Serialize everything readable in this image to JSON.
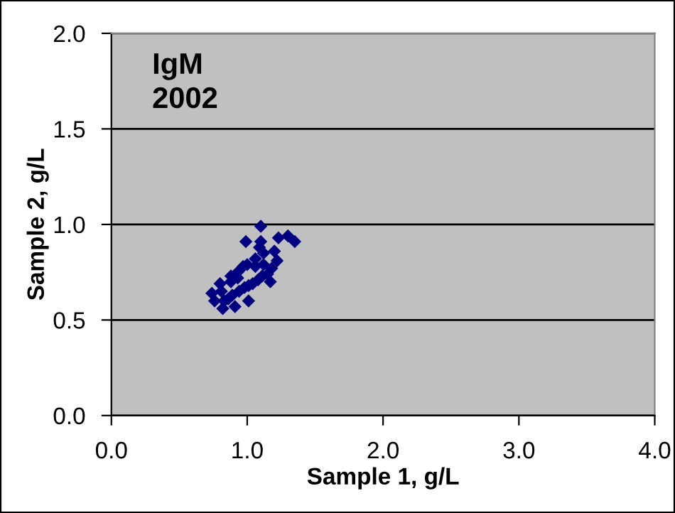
{
  "chart_data": {
    "type": "scatter",
    "xlabel": "Sample 1, g/L",
    "ylabel": "Sample 2, g/L",
    "annotations": [
      "IgM\n2002"
    ],
    "xlim": [
      0,
      4
    ],
    "ylim": [
      0,
      2
    ],
    "xticks": [
      {
        "value": 0,
        "label": "0.0"
      },
      {
        "value": 1,
        "label": "1.0"
      },
      {
        "value": 2,
        "label": "2.0"
      },
      {
        "value": 3,
        "label": "3.0"
      },
      {
        "value": 4,
        "label": "4.0"
      }
    ],
    "yticks": [
      {
        "value": 0,
        "label": "0.0"
      },
      {
        "value": 0.5,
        "label": "0.5"
      },
      {
        "value": 1,
        "label": "1.0"
      },
      {
        "value": 1.5,
        "label": "1.5"
      },
      {
        "value": 2,
        "label": "2.0"
      }
    ],
    "grid": "y",
    "marker": "diamond",
    "series": [
      {
        "color": "#000080",
        "x": [
          1.1,
          1.3,
          1.35,
          1.23,
          0.99,
          1.1,
          0.74,
          0.82,
          0.91,
          1.01,
          1.17,
          0.8,
          0.88,
          0.93,
          1.06,
          1.12,
          1.2,
          0.76,
          0.83,
          0.86,
          0.89,
          0.94,
          0.98,
          1.01,
          1.04,
          1.08,
          1.11,
          1.15,
          1.18,
          1.22,
          0.88,
          0.93,
          0.97,
          1.06,
          1.12,
          0.81,
          1.0,
          1.09
        ],
        "values": [
          0.99,
          0.94,
          0.91,
          0.93,
          0.91,
          0.91,
          0.64,
          0.56,
          0.57,
          0.6,
          0.7,
          0.69,
          0.7,
          0.72,
          0.78,
          0.79,
          0.86,
          0.6,
          0.6,
          0.61,
          0.63,
          0.65,
          0.67,
          0.68,
          0.69,
          0.71,
          0.73,
          0.74,
          0.77,
          0.81,
          0.73,
          0.75,
          0.78,
          0.82,
          0.85,
          0.65,
          0.79,
          0.88
        ]
      }
    ]
  }
}
